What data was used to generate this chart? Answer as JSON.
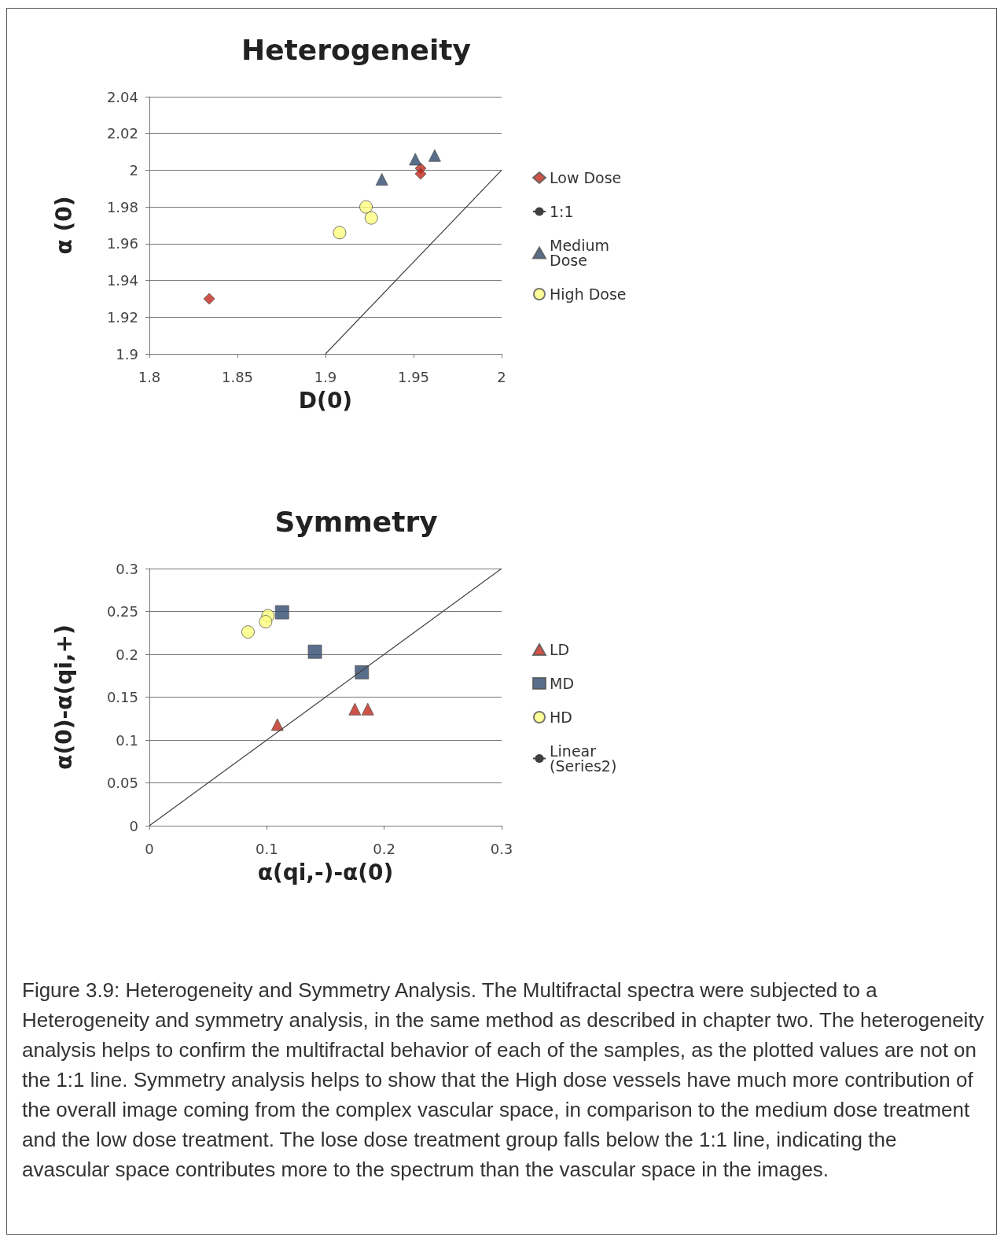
{
  "chart_data": [
    {
      "type": "scatter",
      "title": "Heterogeneity",
      "xlabel": "D(0)",
      "ylabel": "α (0)",
      "xlim": [
        1.8,
        2
      ],
      "xticks": [
        1.8,
        1.85,
        1.9,
        1.95,
        2
      ],
      "ylim": [
        1.9,
        2.04
      ],
      "yticks": [
        1.9,
        1.92,
        1.94,
        1.96,
        1.98,
        2,
        2.02,
        2.04
      ],
      "grid": "y",
      "legend": "right",
      "series": [
        {
          "name": "Low Dose",
          "color": "#c0281c",
          "marker": "diamond",
          "x": [
            1.834,
            1.954,
            1.954
          ],
          "values": [
            1.93,
            2.001,
            1.998
          ]
        },
        {
          "name": "1:1",
          "type": "line",
          "color": "#404040",
          "marker": "none",
          "x": [
            1.9,
            2
          ],
          "values": [
            1.9,
            2
          ]
        },
        {
          "name": "Medium Dose",
          "color": "#2e4a6e",
          "marker": "triangle",
          "x": [
            1.932,
            1.951,
            1.962
          ],
          "values": [
            1.995,
            2.006,
            2.008
          ]
        },
        {
          "name": "High Dose",
          "color": "#ffff80",
          "marker": "circle",
          "x": [
            1.908,
            1.923,
            1.926
          ],
          "values": [
            1.966,
            1.98,
            1.974
          ]
        }
      ]
    },
    {
      "type": "scatter",
      "title": "Symmetry",
      "xlabel": "α(qi,-)-α(0)",
      "ylabel": "α(0)-α(qi,+)",
      "xlim": [
        0,
        0.3
      ],
      "xticks": [
        0,
        0.1,
        0.2,
        0.3
      ],
      "ylim": [
        0,
        0.3
      ],
      "yticks": [
        0,
        0.05,
        0.1,
        0.15,
        0.2,
        0.25,
        0.3
      ],
      "grid": "y",
      "legend": "right",
      "series": [
        {
          "name": "LD",
          "color": "#c0281c",
          "marker": "triangle",
          "x": [
            0.109,
            0.175,
            0.186
          ],
          "values": [
            0.118,
            0.136,
            0.136
          ]
        },
        {
          "name": "MD",
          "color": "#2e4a6e",
          "marker": "square",
          "x": [
            0.113,
            0.141,
            0.181
          ],
          "values": [
            0.249,
            0.203,
            0.179
          ]
        },
        {
          "name": "HD",
          "color": "#ffff80",
          "marker": "circle",
          "x": [
            0.084,
            0.101,
            0.099
          ],
          "values": [
            0.226,
            0.245,
            0.238
          ]
        },
        {
          "name": "Linear (Series2)",
          "type": "line",
          "color": "#404040",
          "marker": "none",
          "x": [
            0,
            0.3
          ],
          "values": [
            0,
            0.3
          ]
        }
      ],
      "annotations": [
        "Figure 3.9: Heterogeneity and Symmetry Analysis.  The Multifractal spectra were subjected to a Heterogeneity and symmetry analysis, in the same method as described in chapter two.  The heterogeneity analysis helps to confirm the multifractal behavior of each of the samples, as the plotted values are not on the 1:1 line.  Symmetry analysis helps to show that the High dose vessels have much more contribution of the overall image coming from the complex vascular space, in comparison to the medium dose treatment and the low dose treatment.  The lose dose treatment group falls below the 1:1 line, indicating the avascular space contributes more to the spectrum than the vascular space in the images."
      ]
    }
  ]
}
